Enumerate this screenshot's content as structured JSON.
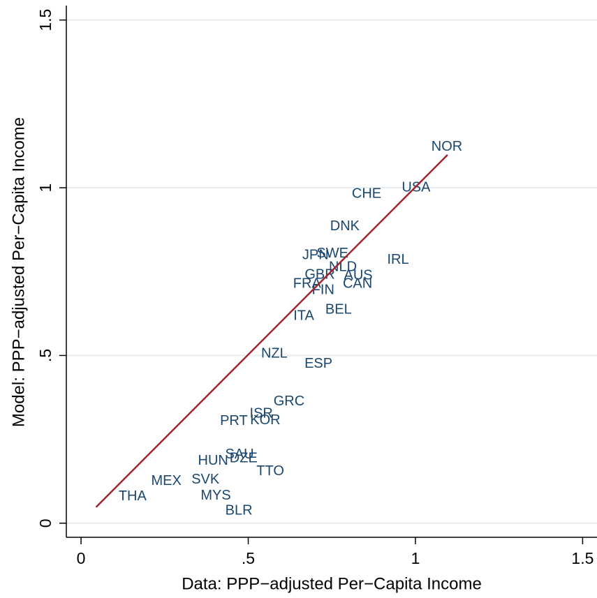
{
  "chart_data": {
    "type": "scatter",
    "x_label": "Data: PPP−adjusted Per−Capita Income",
    "y_label": "Model: PPP−adjusted Per−Capita Income",
    "xlim": [
      -0.044,
      1.543
    ],
    "ylim": [
      -0.042,
      1.543
    ],
    "xticks": [
      0,
      {
        "value": 0.5,
        "label": ".5"
      },
      1,
      1.5
    ],
    "yticks": [
      0,
      {
        "value": 0.5,
        "label": ".5"
      },
      1,
      1.5
    ],
    "grid": true,
    "series": [
      {
        "color": "#1a476f",
        "labels": [
          "NOR",
          "USA",
          "CHE",
          "DNK",
          "IRL",
          "JPN",
          "SWE",
          "NLD",
          "GBR",
          "AUS",
          "FRA",
          "CAN",
          "FIN",
          "ITA",
          "BEL",
          "NZL",
          "ESP",
          "GRC",
          "ISR",
          "KOR",
          "PRT",
          "SAU",
          "HUN",
          "DZE",
          "TTO",
          "BLR",
          "MEX",
          "SVK",
          "MYS",
          "THA"
        ],
        "x": [
          1.094,
          1.002,
          0.854,
          0.789,
          0.948,
          0.701,
          0.752,
          0.783,
          0.714,
          0.829,
          0.676,
          0.827,
          0.724,
          0.666,
          0.77,
          0.578,
          0.71,
          0.622,
          0.539,
          0.551,
          0.457,
          0.474,
          0.395,
          0.486,
          0.566,
          0.472,
          0.255,
          0.372,
          0.403,
          0.154
        ],
        "y": [
          1.121,
          1.0,
          0.981,
          0.884,
          0.784,
          0.798,
          0.803,
          0.763,
          0.74,
          0.738,
          0.713,
          0.713,
          0.694,
          0.617,
          0.636,
          0.505,
          0.474,
          0.362,
          0.326,
          0.306,
          0.304,
          0.204,
          0.185,
          0.193,
          0.154,
          0.037,
          0.125,
          0.129,
          0.081,
          0.079
        ]
      }
    ],
    "line": {
      "color": "#a0262e",
      "x": [
        0.045,
        1.096
      ],
      "y": [
        0.048,
        1.098
      ]
    }
  }
}
